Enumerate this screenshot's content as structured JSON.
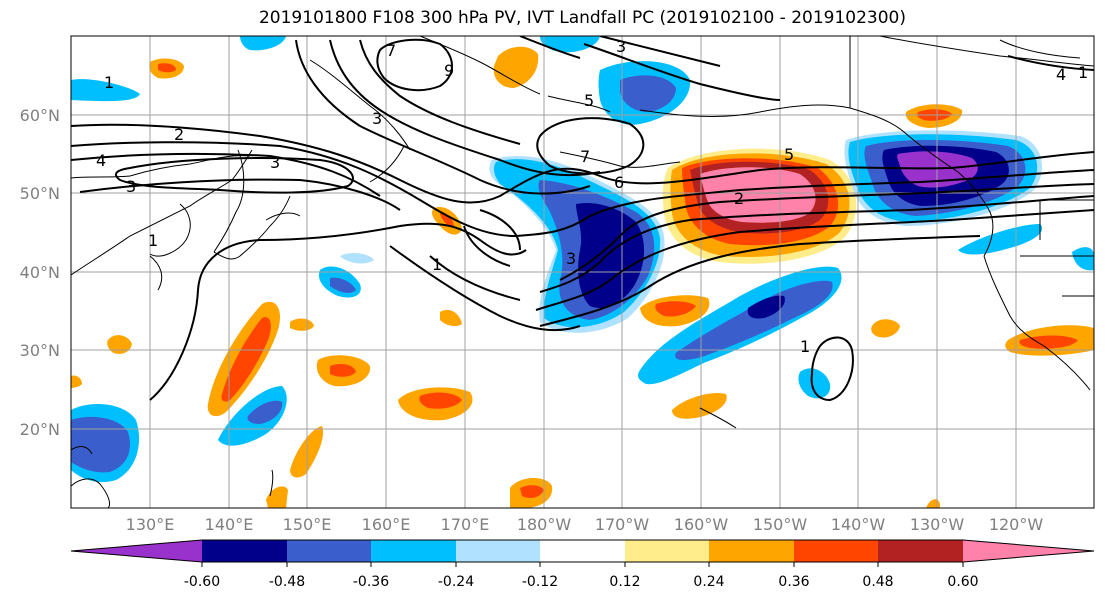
{
  "title": "2019101800 F108 300 hPa PV, IVT Landfall PC (2019102100 - 2019102300)",
  "lat_labels": [
    "60°N",
    "50°N",
    "40°N",
    "30°N",
    "20°N"
  ],
  "lon_labels": [
    "130°E",
    "140°E",
    "150°E",
    "160°E",
    "170°E",
    "180°W",
    "170°W",
    "160°W",
    "150°W",
    "140°W",
    "130°W",
    "120°W"
  ],
  "colorbar": {
    "colors": [
      "#9932cc",
      "#00008b",
      "#3a5fcd",
      "#00bfff",
      "#b0e2ff",
      "#ffffff",
      "#ffec8b",
      "#ffa500",
      "#ff4500",
      "#b22222",
      "#ff82ab"
    ],
    "tick_labels": [
      "-0.60",
      "-0.48",
      "-0.36",
      "-0.24",
      "-0.12",
      "0.12",
      "0.24",
      "0.36",
      "0.48",
      "0.60"
    ]
  },
  "contour_labels": [
    "1",
    "2",
    "4",
    "3",
    "1",
    "3",
    "9",
    "3",
    "7",
    "1",
    "5",
    "3",
    "7",
    "6",
    "5",
    "2",
    "3",
    "1",
    "1",
    "4"
  ]
}
